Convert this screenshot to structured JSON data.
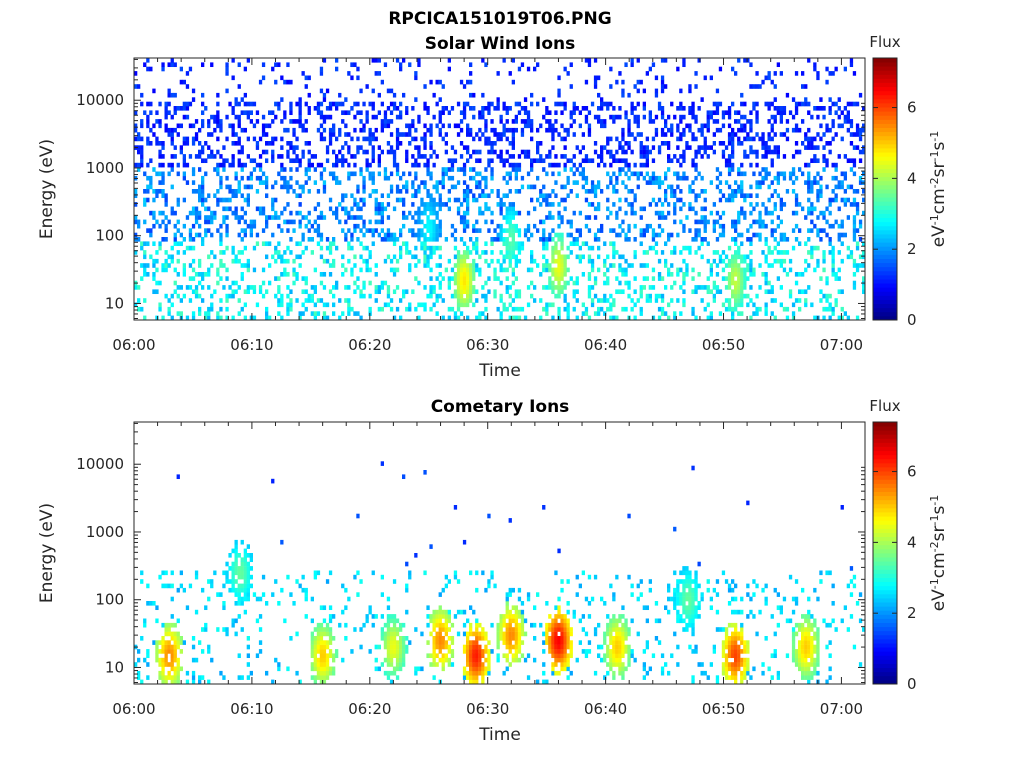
{
  "figure": {
    "title": "RPCICA151019T06.PNG"
  },
  "chart_data": [
    {
      "type": "heatmap",
      "title": "Solar Wind Ions",
      "xlabel": "Time",
      "ylabel": "Energy (eV)",
      "x_scale": "time",
      "y_scale": "log",
      "xlim": [
        "06:00",
        "07:02"
      ],
      "ylim": [
        5.7,
        42000
      ],
      "xticks": [
        "06:00",
        "06:10",
        "06:20",
        "06:30",
        "06:40",
        "06:50",
        "07:00"
      ],
      "yticks": [
        10,
        100,
        1000,
        10000
      ],
      "ytick_labels": [
        "10",
        "100",
        "1000",
        "10000"
      ],
      "colorbar": {
        "title": "Flux",
        "label": "eV-1cm-2sr-1s-1",
        "range": [
          0,
          7.4
        ],
        "ticks": [
          0,
          2,
          4,
          6
        ],
        "colormap": "jet"
      },
      "grid": false,
      "features": [
        {
          "time": "06:25",
          "energy": 130,
          "flux": 2.8
        },
        {
          "time": "06:28",
          "energy": 22,
          "flux": 4.8
        },
        {
          "time": "06:32",
          "energy": 90,
          "flux": 3.4
        },
        {
          "time": "06:36",
          "energy": 35,
          "flux": 4.5
        },
        {
          "time": "06:51",
          "energy": 22,
          "flux": 4.2
        }
      ]
    },
    {
      "type": "heatmap",
      "title": "Cometary Ions",
      "xlabel": "Time",
      "ylabel": "Energy (eV)",
      "x_scale": "time",
      "y_scale": "log",
      "xlim": [
        "06:00",
        "07:02"
      ],
      "ylim": [
        5.7,
        42000
      ],
      "xticks": [
        "06:00",
        "06:10",
        "06:20",
        "06:30",
        "06:40",
        "06:50",
        "07:00"
      ],
      "yticks": [
        10,
        100,
        1000,
        10000
      ],
      "ytick_labels": [
        "10",
        "100",
        "1000",
        "10000"
      ],
      "colorbar": {
        "title": "Flux",
        "label": "eV-1cm-2sr-1s-1",
        "range": [
          0,
          7.4
        ],
        "ticks": [
          0,
          2,
          4,
          6
        ],
        "colormap": "jet"
      },
      "grid": false,
      "features": [
        {
          "time": "06:03",
          "energy": 15,
          "flux": 5.5
        },
        {
          "time": "06:09",
          "energy": 250,
          "flux": 3.5
        },
        {
          "time": "06:16",
          "energy": 15,
          "flux": 5.0
        },
        {
          "time": "06:22",
          "energy": 20,
          "flux": 4.5
        },
        {
          "time": "06:26",
          "energy": 25,
          "flux": 5.5
        },
        {
          "time": "06:29",
          "energy": 15,
          "flux": 6.3
        },
        {
          "time": "06:32",
          "energy": 30,
          "flux": 5.5
        },
        {
          "time": "06:36",
          "energy": 25,
          "flux": 6.5
        },
        {
          "time": "06:41",
          "energy": 20,
          "flux": 5.0
        },
        {
          "time": "06:47",
          "energy": 100,
          "flux": 3.5
        },
        {
          "time": "06:51",
          "energy": 15,
          "flux": 6.0
        },
        {
          "time": "06:57",
          "energy": 20,
          "flux": 5.0
        }
      ]
    }
  ]
}
